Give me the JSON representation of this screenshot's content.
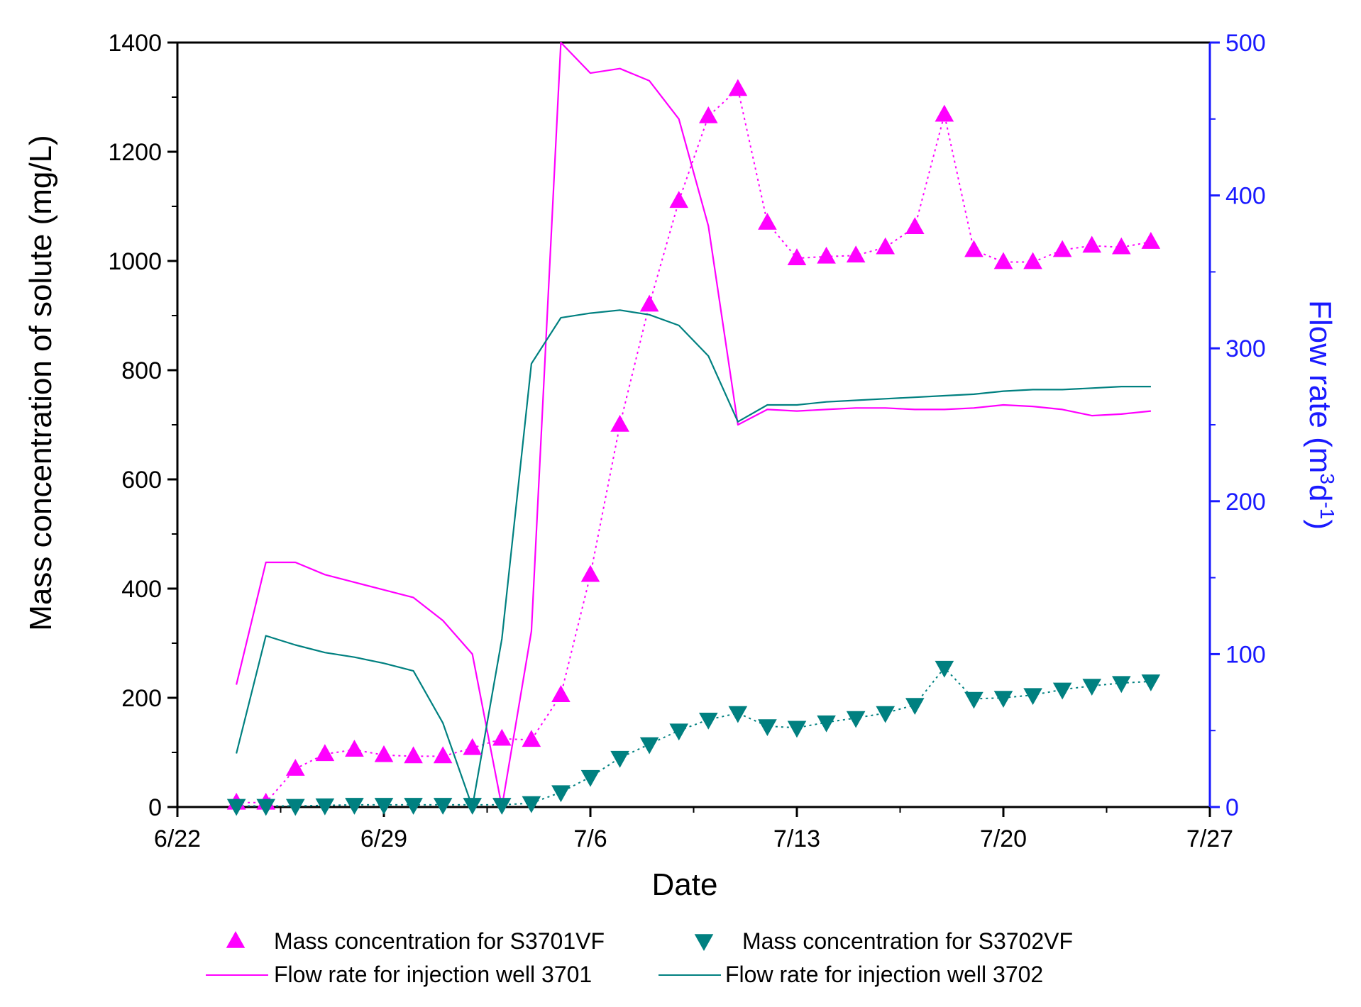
{
  "chart_data": {
    "type": "line",
    "title": "",
    "xlabel": "Date",
    "ylabel": "Mass concentration of solute (mg/L)",
    "ylabel_right": "Flow rate (m3d-1)",
    "ylabel_right_parts": {
      "base": "Flow rate (m",
      "sup1": "3",
      "mid": "d",
      "sup2": "-1",
      "end": ")"
    },
    "xlim": [
      0,
      35
    ],
    "ylim": [
      0,
      1400
    ],
    "ylim_right": [
      0,
      500
    ],
    "x_ticks": [
      {
        "value": 0,
        "label": "6/22"
      },
      {
        "value": 7,
        "label": "6/29"
      },
      {
        "value": 14,
        "label": "7/6"
      },
      {
        "value": 21,
        "label": "7/13"
      },
      {
        "value": 28,
        "label": "7/20"
      },
      {
        "value": 35,
        "label": "7/27"
      }
    ],
    "y_ticks": [
      {
        "value": 0,
        "label": "0"
      },
      {
        "value": 200,
        "label": "200"
      },
      {
        "value": 400,
        "label": "400"
      },
      {
        "value": 600,
        "label": "600"
      },
      {
        "value": 800,
        "label": "800"
      },
      {
        "value": 1000,
        "label": "1000"
      },
      {
        "value": 1200,
        "label": "1200"
      },
      {
        "value": 1400,
        "label": "1400"
      }
    ],
    "y_ticks_right": [
      {
        "value": 0,
        "label": "0"
      },
      {
        "value": 100,
        "label": "100"
      },
      {
        "value": 200,
        "label": "200"
      },
      {
        "value": 300,
        "label": "300"
      },
      {
        "value": 400,
        "label": "400"
      },
      {
        "value": 500,
        "label": "500"
      }
    ],
    "series": [
      {
        "name": "Mass concentration for S3701VF",
        "kind": "scatter-dotted",
        "axis": "left",
        "marker": "triangle-up",
        "color": "#ff00ff",
        "x": [
          2,
          3,
          4,
          5,
          6,
          7,
          8,
          9,
          10,
          11,
          12,
          13,
          14,
          15,
          16,
          17,
          18,
          19,
          20,
          21,
          22,
          23,
          24,
          25,
          26,
          27,
          28,
          29,
          30,
          31,
          32,
          33
        ],
        "y": [
          8,
          8,
          70,
          97,
          105,
          95,
          93,
          93,
          108,
          125,
          123,
          205,
          425,
          700,
          920,
          1110,
          1265,
          1315,
          1070,
          1005,
          1008,
          1010,
          1025,
          1062,
          1268,
          1020,
          998,
          998,
          1020,
          1028,
          1025,
          1035
        ]
      },
      {
        "name": "Mass concentration for S3702VF",
        "kind": "scatter-dotted",
        "axis": "left",
        "marker": "triangle-down",
        "color": "#008080",
        "x": [
          2,
          3,
          4,
          5,
          6,
          7,
          8,
          9,
          10,
          11,
          12,
          13,
          14,
          15,
          16,
          17,
          18,
          19,
          20,
          21,
          22,
          23,
          24,
          25,
          26,
          27,
          28,
          29,
          30,
          31,
          32,
          33
        ],
        "y": [
          2,
          2,
          2,
          3,
          4,
          4,
          4,
          4,
          4,
          4,
          7,
          27,
          55,
          90,
          115,
          140,
          160,
          172,
          148,
          145,
          155,
          163,
          172,
          187,
          255,
          198,
          200,
          205,
          215,
          222,
          227,
          230
        ]
      },
      {
        "name": "Flow rate for injection well 3701",
        "kind": "line",
        "axis": "right",
        "color": "#ff00ff",
        "x": [
          2,
          3,
          4,
          5,
          6,
          7,
          8,
          9,
          10,
          11,
          12,
          13,
          14,
          15,
          16,
          17,
          18,
          19,
          20,
          21,
          22,
          23,
          24,
          25,
          26,
          27,
          28,
          29,
          30,
          31,
          32,
          33
        ],
        "y": [
          80,
          160,
          160,
          152,
          147,
          142,
          137,
          122,
          100,
          0,
          115,
          500,
          480,
          483,
          475,
          450,
          380,
          250,
          260,
          259,
          260,
          261,
          261,
          260,
          260,
          261,
          263,
          262,
          260,
          256,
          257,
          259
        ]
      },
      {
        "name": "Flow rate for injection well 3702",
        "kind": "line",
        "axis": "right",
        "color": "#008080",
        "x": [
          2,
          3,
          4,
          5,
          6,
          7,
          8,
          9,
          10,
          11,
          12,
          13,
          14,
          15,
          16,
          17,
          18,
          19,
          20,
          21,
          22,
          23,
          24,
          25,
          26,
          27,
          28,
          29,
          30,
          31,
          32,
          33
        ],
        "y": [
          35,
          112,
          106,
          101,
          98,
          94,
          89,
          55,
          0,
          110,
          290,
          320,
          323,
          325,
          322,
          315,
          295,
          252,
          263,
          263,
          265,
          266,
          267,
          268,
          269,
          270,
          272,
          273,
          273,
          274,
          275,
          275
        ]
      }
    ],
    "legend": {
      "placement": "bottom",
      "entries": [
        "Mass concentration for S3701VF",
        "Mass concentration for S3702VF",
        "Flow rate for injection well 3701",
        "Flow rate for injection well 3702"
      ]
    },
    "colors": {
      "axis_left": "#000000",
      "axis_right": "#1a1aff"
    }
  }
}
